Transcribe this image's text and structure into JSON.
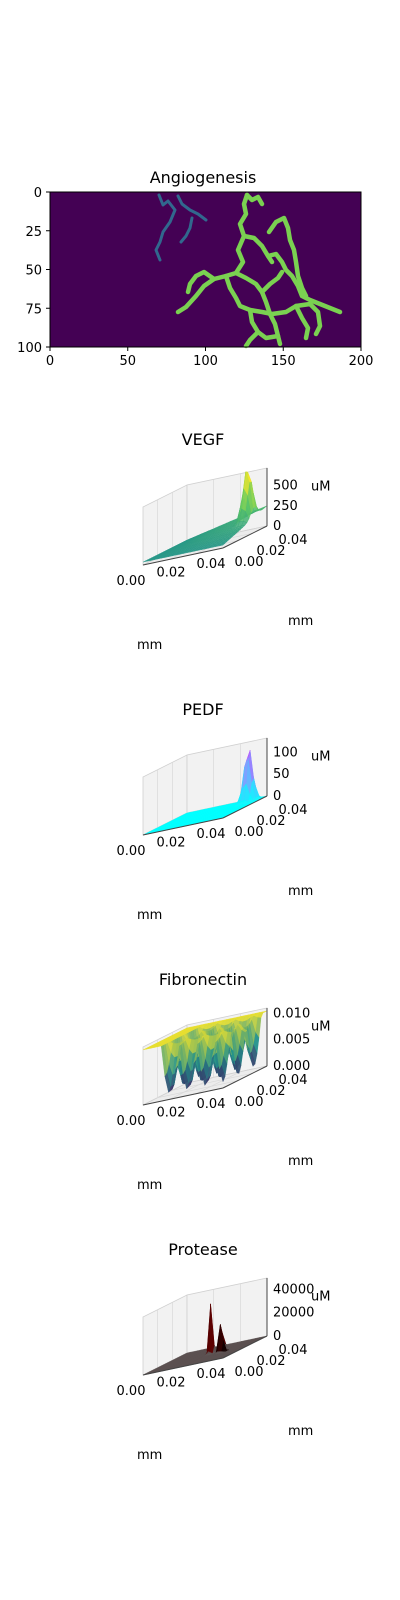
{
  "chart_data": [
    {
      "type": "heatmap",
      "title": "Angiogenesis",
      "xlim": [
        0,
        200
      ],
      "ylim": [
        0,
        100
      ],
      "x_ticks": [
        "0",
        "50",
        "100",
        "150",
        "200"
      ],
      "y_ticks": [
        "0",
        "25",
        "50",
        "75",
        "100"
      ],
      "background_color": "#440154",
      "vessel_colors": [
        "#7ad151",
        "#31688e"
      ],
      "description": "Branching blood-vessel network; main vessel tree spans x≈80–185, y≈0–100"
    },
    {
      "type": "surface",
      "title": "VEGF",
      "zlabel": "uM",
      "xlabel": "mm",
      "ylabel": "mm",
      "x_ticks": [
        "0.00",
        "0.02",
        "0.04"
      ],
      "y_ticks": [
        "0.00",
        "0.02",
        "0.04"
      ],
      "z_ticks": [
        "0",
        "250",
        "500"
      ],
      "peak_value": 650,
      "colormap": [
        "#21918c",
        "#5ec962",
        "#fde725"
      ]
    },
    {
      "type": "surface",
      "title": "PEDF",
      "zlabel": "uM",
      "xlabel": "mm",
      "ylabel": "mm",
      "x_ticks": [
        "0.00",
        "0.02",
        "0.04"
      ],
      "y_ticks": [
        "0.00",
        "0.02",
        "0.04"
      ],
      "z_ticks": [
        "0",
        "50",
        "100"
      ],
      "peak_value": 120,
      "colormap": [
        "#00ffff",
        "#80a0ff",
        "#ff00ff"
      ]
    },
    {
      "type": "surface",
      "title": "Fibronectin",
      "zlabel": "uM",
      "xlabel": "mm",
      "ylabel": "mm",
      "x_ticks": [
        "0.00",
        "0.02",
        "0.04"
      ],
      "y_ticks": [
        "0.00",
        "0.02",
        "0.04"
      ],
      "z_ticks": [
        "0.000",
        "0.005",
        "0.010"
      ],
      "peak_value": 0.01,
      "colormap": [
        "#440154",
        "#21918c",
        "#fde725"
      ]
    },
    {
      "type": "surface",
      "title": "Protease",
      "zlabel": "uM",
      "xlabel": "mm",
      "ylabel": "mm",
      "x_ticks": [
        "0.00",
        "0.02",
        "0.04"
      ],
      "y_ticks": [
        "0.00",
        "0.02",
        "0.04"
      ],
      "z_ticks": [
        "0",
        "20000",
        "40000"
      ],
      "peak_value": 45000,
      "colormap": [
        "#000000",
        "#b00000",
        "#ffcc00"
      ]
    }
  ]
}
